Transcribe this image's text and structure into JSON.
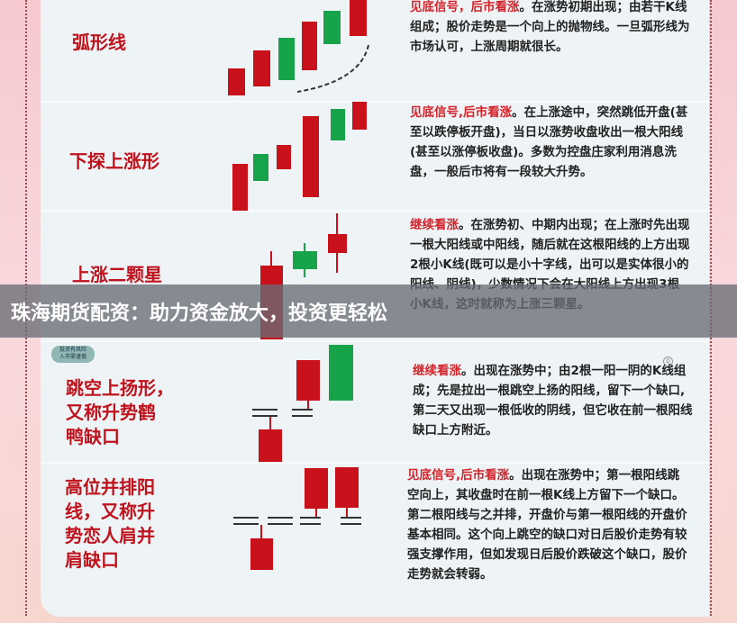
{
  "colors": {
    "bullish": "#c8111b",
    "bearish": "#17a34a",
    "label": "#c0121c",
    "highlight": "#d2232a"
  },
  "disclaimer_badge": "投资有风险\n入市需谨慎",
  "patterns": [
    {
      "name": "弧形线",
      "signal": "见底信号，后市看涨",
      "text": "。在涨势初期出现；由若干K线组成；股价走势是一个向上的抛物线。一旦弧形线为市场认可，上涨周期就很长。"
    },
    {
      "name": "下探上涨形",
      "signal": "见底信号,后市看涨",
      "text": "。在上涨途中，突然跳低开盘(甚至以跌停板开盘)，当日以涨势收盘收出一根大阳线(甚至以涨停板收盘)。多数为控盘庄家利用消息洗盘，一般后市将有一段较大升势。"
    },
    {
      "name": "上涨二颗星",
      "signal": "继续看涨",
      "text": "。在涨势初、中期内出现；在上涨时先出现一根大阳线或中阳线，随后就在这根阳线的上方出现2根小K线(既可以是小十字线，出可以是实体很小的阳线、阴线)，少数情况下会在大阳线上方出现3根小K线，这时就称为上涨三颗星。"
    },
    {
      "name": "跳空上扬形，\n又称升势鹤\n鸭缺口",
      "signal": "继续看涨",
      "text": "。出现在涨势中；由2根一阳一阴的K线组成；先是拉出一根跳空上扬的阳线，留下一个缺口,第二天又出现一根低收的阴线，但它收在前一根阳线缺口上方附近。"
    },
    {
      "name": "高位并排阳\n线，又称升\n势恋人肩并\n肩缺口",
      "signal": "见底信号,后市看涨",
      "text": "。出现在涨势中；第一根阳线跳空向上，其收盘时在前一根K线上方留下一个缺口。第二根阳线与之并排，开盘价与第一根阳线的开盘价基本相同。这个向上跳空的缺口对日后股价走势有较强支撑作用，但如发现日后股价跌破这个缺口，股价走势就会转弱。"
    }
  ],
  "banner": {
    "text": "珠海期货配资：助力资金放大，投资更轻松"
  }
}
